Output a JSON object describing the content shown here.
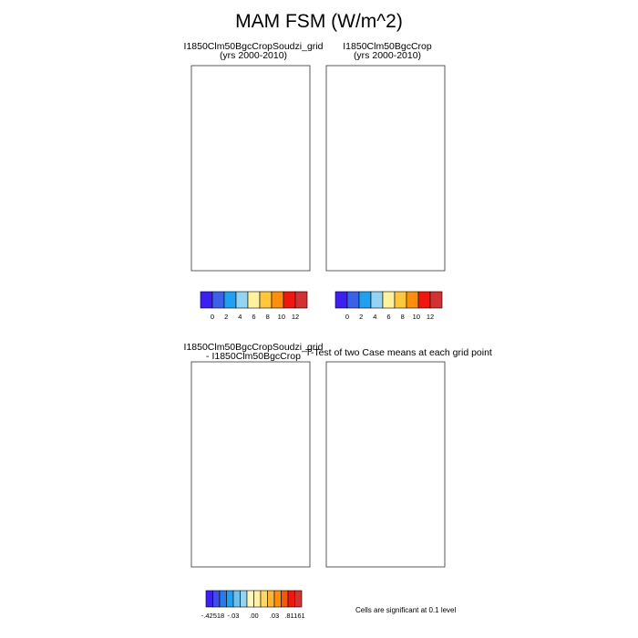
{
  "title": "MAM FSM (W/m^2)",
  "panels": [
    {
      "line1": "I1850Clm50BgcCropSoudzi_grid",
      "line2": "(yrs 2000-2010)"
    },
    {
      "line1": "I1850Clm50BgcCrop",
      "line2": "(yrs 2000-2010)"
    },
    {
      "line1": "I1850Clm50BgcCropSoudzi_grid",
      "line2": "- I1850Clm50BgcCrop"
    },
    {
      "line1": "T-Test of two Case means at each grid point",
      "line2": ""
    }
  ],
  "note": "Cells are significant at 0.1 level",
  "chart_data": [
    {
      "type": "heatmap",
      "title": "I1850Clm50BgcCropSoudzi_grid (yrs 2000-2010)",
      "colorbar": {
        "labels": [
          "0",
          "2",
          "4",
          "6",
          "8",
          "10",
          "12"
        ],
        "colors": [
          "#3d1ff2",
          "#3b62e6",
          "#22a0f0",
          "#95d4f0",
          "#fff29e",
          "#ffc83c",
          "#ff8e0b",
          "#f0170e",
          "#d23232"
        ]
      }
    },
    {
      "type": "heatmap",
      "title": "I1850Clm50BgcCrop (yrs 2000-2010)",
      "colorbar": {
        "labels": [
          "0",
          "2",
          "4",
          "6",
          "8",
          "10",
          "12"
        ],
        "colors": [
          "#3d1ff2",
          "#3b62e6",
          "#22a0f0",
          "#95d4f0",
          "#fff29e",
          "#ffc83c",
          "#ff8e0b",
          "#f0170e",
          "#d23232"
        ]
      }
    },
    {
      "type": "heatmap",
      "title": "I1850Clm50BgcCropSoudzi_grid - I1850Clm50BgcCrop",
      "colorbar": {
        "labels": [
          "-.42518",
          "-.03",
          ".00",
          ".03",
          ".81161"
        ],
        "colors": [
          "#3d1ff2",
          "#3b4ee6",
          "#2a7ae8",
          "#22a0f0",
          "#6ec0ee",
          "#95d4f0",
          "#fff7b5",
          "#fff29e",
          "#ffd86a",
          "#ffb43c",
          "#ff8e0b",
          "#f05a0b",
          "#f0170e",
          "#d23232"
        ]
      }
    },
    {
      "type": "heatmap",
      "title": "T-Test of two Case means at each grid point",
      "significant_cells": 0
    }
  ]
}
